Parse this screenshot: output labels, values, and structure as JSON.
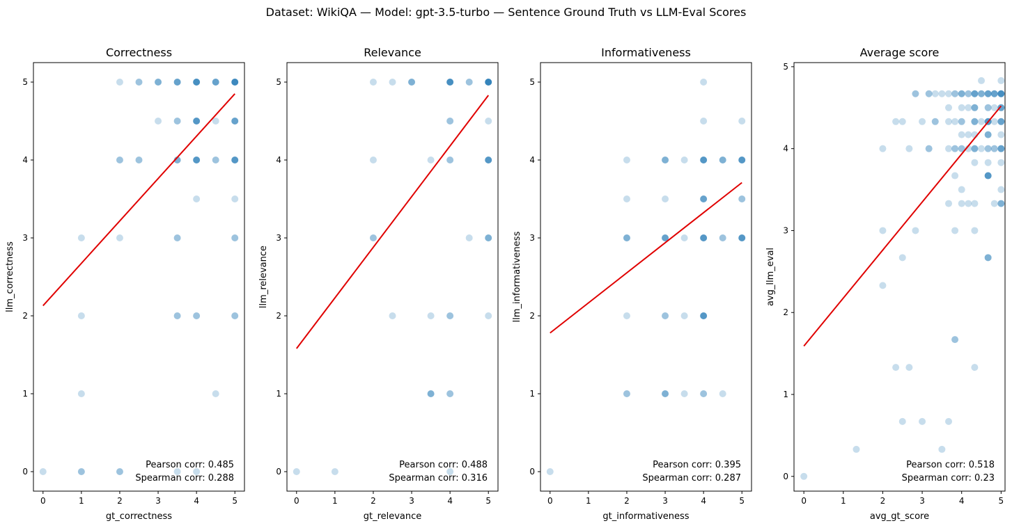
{
  "figure": {
    "suptitle": "Dataset: WikiQA — Model: gpt-3.5-turbo — Sentence Ground Truth vs LLM-Eval Scores"
  },
  "colors": {
    "points": "#1f77b4",
    "fit_line": "#e00000",
    "axes": "#000000",
    "background": "#ffffff"
  },
  "chart_data": [
    {
      "type": "scatter",
      "title": "Correctness",
      "xlabel": "gt_correctness",
      "ylabel": "llm_correctness",
      "xlim": [
        -0.25,
        5.25
      ],
      "ylim": [
        -0.25,
        5.25
      ],
      "xticks": [
        "0",
        "1",
        "2",
        "3",
        "4",
        "5"
      ],
      "yticks": [
        "0",
        "1",
        "2",
        "3",
        "4",
        "5"
      ],
      "grid": false,
      "annotations": [
        "Pearson corr: 0.485",
        "Spearman corr: 0.288"
      ],
      "fit_line": {
        "x": [
          0,
          5
        ],
        "y": [
          2.13,
          4.85
        ]
      },
      "points": [
        {
          "x": 2,
          "y": 5,
          "n": 1
        },
        {
          "x": 2.5,
          "y": 5,
          "n": 2
        },
        {
          "x": 3,
          "y": 5,
          "n": 3
        },
        {
          "x": 3.5,
          "y": 5,
          "n": 4
        },
        {
          "x": 4,
          "y": 5,
          "n": 6
        },
        {
          "x": 4.5,
          "y": 5,
          "n": 4
        },
        {
          "x": 5,
          "y": 5,
          "n": 7
        },
        {
          "x": 3,
          "y": 4.5,
          "n": 1
        },
        {
          "x": 3.5,
          "y": 4.5,
          "n": 2
        },
        {
          "x": 4,
          "y": 4.5,
          "n": 5
        },
        {
          "x": 4.5,
          "y": 4.5,
          "n": 1
        },
        {
          "x": 5,
          "y": 4.5,
          "n": 4
        },
        {
          "x": 2,
          "y": 4,
          "n": 2
        },
        {
          "x": 2.5,
          "y": 4,
          "n": 2
        },
        {
          "x": 3.5,
          "y": 4,
          "n": 3
        },
        {
          "x": 4,
          "y": 4,
          "n": 5
        },
        {
          "x": 4.5,
          "y": 4,
          "n": 2
        },
        {
          "x": 5,
          "y": 4,
          "n": 5
        },
        {
          "x": 4,
          "y": 3.5,
          "n": 1
        },
        {
          "x": 5,
          "y": 3.5,
          "n": 1
        },
        {
          "x": 1,
          "y": 3,
          "n": 1
        },
        {
          "x": 2,
          "y": 3,
          "n": 1
        },
        {
          "x": 3.5,
          "y": 3,
          "n": 2
        },
        {
          "x": 5,
          "y": 3,
          "n": 2
        },
        {
          "x": 1,
          "y": 2,
          "n": 1
        },
        {
          "x": 3.5,
          "y": 2,
          "n": 2
        },
        {
          "x": 4,
          "y": 2,
          "n": 2
        },
        {
          "x": 5,
          "y": 2,
          "n": 2
        },
        {
          "x": 1,
          "y": 1,
          "n": 1
        },
        {
          "x": 4.5,
          "y": 1,
          "n": 1
        },
        {
          "x": 0,
          "y": 0,
          "n": 1
        },
        {
          "x": 1,
          "y": 0,
          "n": 2
        },
        {
          "x": 2,
          "y": 0,
          "n": 2
        },
        {
          "x": 3.5,
          "y": 0,
          "n": 1
        },
        {
          "x": 4,
          "y": 0,
          "n": 1
        }
      ]
    },
    {
      "type": "scatter",
      "title": "Relevance",
      "xlabel": "gt_relevance",
      "ylabel": "llm_relevance",
      "xlim": [
        -0.25,
        5.25
      ],
      "ylim": [
        -0.25,
        5.25
      ],
      "xticks": [
        "0",
        "1",
        "2",
        "3",
        "4",
        "5"
      ],
      "yticks": [
        "0",
        "1",
        "2",
        "3",
        "4",
        "5"
      ],
      "grid": false,
      "annotations": [
        "Pearson corr: 0.488",
        "Spearman corr: 0.316"
      ],
      "fit_line": {
        "x": [
          0,
          5
        ],
        "y": [
          1.58,
          4.83
        ]
      },
      "points": [
        {
          "x": 2,
          "y": 5,
          "n": 1
        },
        {
          "x": 2.5,
          "y": 5,
          "n": 1
        },
        {
          "x": 3,
          "y": 5,
          "n": 3
        },
        {
          "x": 4,
          "y": 5,
          "n": 6
        },
        {
          "x": 4.5,
          "y": 5,
          "n": 2
        },
        {
          "x": 5,
          "y": 5,
          "n": 8
        },
        {
          "x": 4,
          "y": 4.5,
          "n": 2
        },
        {
          "x": 5,
          "y": 4.5,
          "n": 1
        },
        {
          "x": 2,
          "y": 4,
          "n": 1
        },
        {
          "x": 3.5,
          "y": 4,
          "n": 1
        },
        {
          "x": 4,
          "y": 4,
          "n": 2
        },
        {
          "x": 5,
          "y": 4,
          "n": 5
        },
        {
          "x": 2,
          "y": 3,
          "n": 2
        },
        {
          "x": 4.5,
          "y": 3,
          "n": 1
        },
        {
          "x": 5,
          "y": 3,
          "n": 3
        },
        {
          "x": 2.5,
          "y": 2,
          "n": 1
        },
        {
          "x": 3.5,
          "y": 2,
          "n": 1
        },
        {
          "x": 4,
          "y": 2,
          "n": 2
        },
        {
          "x": 5,
          "y": 2,
          "n": 1
        },
        {
          "x": 3.5,
          "y": 1,
          "n": 3
        },
        {
          "x": 4,
          "y": 1,
          "n": 2
        },
        {
          "x": 0,
          "y": 0,
          "n": 1
        },
        {
          "x": 1,
          "y": 0,
          "n": 1
        },
        {
          "x": 4,
          "y": 0,
          "n": 1
        }
      ]
    },
    {
      "type": "scatter",
      "title": "Informativeness",
      "xlabel": "gt_informativeness",
      "ylabel": "llm_informativeness",
      "xlim": [
        -0.25,
        5.25
      ],
      "ylim": [
        -0.25,
        5.25
      ],
      "xticks": [
        "0",
        "1",
        "2",
        "3",
        "4",
        "5"
      ],
      "yticks": [
        "0",
        "1",
        "2",
        "3",
        "4",
        "5"
      ],
      "grid": false,
      "annotations": [
        "Pearson corr: 0.395",
        "Spearman corr: 0.287"
      ],
      "fit_line": {
        "x": [
          0,
          5
        ],
        "y": [
          1.78,
          3.71
        ]
      },
      "points": [
        {
          "x": 4,
          "y": 5,
          "n": 1
        },
        {
          "x": 4,
          "y": 4.5,
          "n": 1
        },
        {
          "x": 5,
          "y": 4.5,
          "n": 1
        },
        {
          "x": 2,
          "y": 4,
          "n": 1
        },
        {
          "x": 3,
          "y": 4,
          "n": 3
        },
        {
          "x": 3.5,
          "y": 4,
          "n": 1
        },
        {
          "x": 4,
          "y": 4,
          "n": 5
        },
        {
          "x": 4.5,
          "y": 4,
          "n": 3
        },
        {
          "x": 5,
          "y": 4,
          "n": 5
        },
        {
          "x": 2,
          "y": 3.5,
          "n": 1
        },
        {
          "x": 3,
          "y": 3.5,
          "n": 1
        },
        {
          "x": 4,
          "y": 3.5,
          "n": 4
        },
        {
          "x": 5,
          "y": 3.5,
          "n": 2
        },
        {
          "x": 2,
          "y": 3,
          "n": 3
        },
        {
          "x": 3,
          "y": 3,
          "n": 4
        },
        {
          "x": 3.5,
          "y": 3,
          "n": 1
        },
        {
          "x": 4,
          "y": 3,
          "n": 5
        },
        {
          "x": 4.5,
          "y": 3,
          "n": 2
        },
        {
          "x": 5,
          "y": 3,
          "n": 5
        },
        {
          "x": 2,
          "y": 2,
          "n": 1
        },
        {
          "x": 3,
          "y": 2,
          "n": 2
        },
        {
          "x": 3.5,
          "y": 2,
          "n": 1
        },
        {
          "x": 4,
          "y": 2,
          "n": 5
        },
        {
          "x": 2,
          "y": 1,
          "n": 2
        },
        {
          "x": 3,
          "y": 1,
          "n": 3
        },
        {
          "x": 3.5,
          "y": 1,
          "n": 1
        },
        {
          "x": 4,
          "y": 1,
          "n": 2
        },
        {
          "x": 4.5,
          "y": 1,
          "n": 1
        },
        {
          "x": 0,
          "y": 0,
          "n": 1
        }
      ]
    },
    {
      "type": "scatter",
      "title": "Average score",
      "xlabel": "avg_gt_score",
      "ylabel": "avg_llm_eval",
      "xlim": [
        -0.25,
        5.1
      ],
      "ylim": [
        -0.18,
        5.05
      ],
      "xticks": [
        "0",
        "1",
        "2",
        "3",
        "4",
        "5"
      ],
      "yticks": [
        "0",
        "1",
        "2",
        "3",
        "4",
        "5"
      ],
      "grid": false,
      "annotations": [
        "Pearson corr: 0.518",
        "Spearman corr: 0.23"
      ],
      "fit_line": {
        "x": [
          0,
          5
        ],
        "y": [
          1.59,
          4.52
        ]
      },
      "points": [
        {
          "x": 4.5,
          "y": 4.83,
          "n": 1
        },
        {
          "x": 5,
          "y": 4.83,
          "n": 1
        },
        {
          "x": 2.83,
          "y": 4.67,
          "n": 2
        },
        {
          "x": 3.17,
          "y": 4.67,
          "n": 2
        },
        {
          "x": 3.33,
          "y": 4.67,
          "n": 1
        },
        {
          "x": 3.5,
          "y": 4.67,
          "n": 1
        },
        {
          "x": 3.67,
          "y": 4.67,
          "n": 1
        },
        {
          "x": 3.83,
          "y": 4.67,
          "n": 2
        },
        {
          "x": 4,
          "y": 4.67,
          "n": 3
        },
        {
          "x": 4.17,
          "y": 4.67,
          "n": 2
        },
        {
          "x": 4.33,
          "y": 4.67,
          "n": 4
        },
        {
          "x": 4.5,
          "y": 4.67,
          "n": 3
        },
        {
          "x": 4.67,
          "y": 4.67,
          "n": 4
        },
        {
          "x": 4.83,
          "y": 4.67,
          "n": 4
        },
        {
          "x": 5,
          "y": 4.67,
          "n": 6
        },
        {
          "x": 3.67,
          "y": 4.5,
          "n": 1
        },
        {
          "x": 4,
          "y": 4.5,
          "n": 1
        },
        {
          "x": 4.17,
          "y": 4.5,
          "n": 1
        },
        {
          "x": 4.33,
          "y": 4.5,
          "n": 3
        },
        {
          "x": 4.67,
          "y": 4.5,
          "n": 2
        },
        {
          "x": 4.83,
          "y": 4.5,
          "n": 1
        },
        {
          "x": 5,
          "y": 4.5,
          "n": 4
        },
        {
          "x": 2.33,
          "y": 4.33,
          "n": 1
        },
        {
          "x": 2.5,
          "y": 4.33,
          "n": 1
        },
        {
          "x": 3,
          "y": 4.33,
          "n": 1
        },
        {
          "x": 3.33,
          "y": 4.33,
          "n": 2
        },
        {
          "x": 3.67,
          "y": 4.33,
          "n": 1
        },
        {
          "x": 3.83,
          "y": 4.33,
          "n": 1
        },
        {
          "x": 4,
          "y": 4.33,
          "n": 2
        },
        {
          "x": 4.33,
          "y": 4.33,
          "n": 3
        },
        {
          "x": 4.5,
          "y": 4.33,
          "n": 1
        },
        {
          "x": 4.67,
          "y": 4.33,
          "n": 5
        },
        {
          "x": 4.83,
          "y": 4.33,
          "n": 1
        },
        {
          "x": 5,
          "y": 4.33,
          "n": 4
        },
        {
          "x": 4,
          "y": 4.17,
          "n": 1
        },
        {
          "x": 4.17,
          "y": 4.17,
          "n": 1
        },
        {
          "x": 4.33,
          "y": 4.17,
          "n": 1
        },
        {
          "x": 4.67,
          "y": 4.17,
          "n": 3
        },
        {
          "x": 5,
          "y": 4.17,
          "n": 1
        },
        {
          "x": 2,
          "y": 4,
          "n": 1
        },
        {
          "x": 2.67,
          "y": 4,
          "n": 1
        },
        {
          "x": 3.17,
          "y": 4,
          "n": 2
        },
        {
          "x": 3.67,
          "y": 4,
          "n": 1
        },
        {
          "x": 3.83,
          "y": 4,
          "n": 2
        },
        {
          "x": 4,
          "y": 4,
          "n": 2
        },
        {
          "x": 4.17,
          "y": 4,
          "n": 1
        },
        {
          "x": 4.33,
          "y": 4,
          "n": 3
        },
        {
          "x": 4.5,
          "y": 4,
          "n": 1
        },
        {
          "x": 4.67,
          "y": 4,
          "n": 2
        },
        {
          "x": 4.83,
          "y": 4,
          "n": 2
        },
        {
          "x": 5,
          "y": 4,
          "n": 4
        },
        {
          "x": 4.33,
          "y": 3.83,
          "n": 1
        },
        {
          "x": 4.67,
          "y": 3.83,
          "n": 1
        },
        {
          "x": 5,
          "y": 3.83,
          "n": 1
        },
        {
          "x": 3.83,
          "y": 3.67,
          "n": 1
        },
        {
          "x": 4.67,
          "y": 3.67,
          "n": 5
        },
        {
          "x": 4,
          "y": 3.5,
          "n": 1
        },
        {
          "x": 5,
          "y": 3.5,
          "n": 1
        },
        {
          "x": 3.67,
          "y": 3.33,
          "n": 1
        },
        {
          "x": 4,
          "y": 3.33,
          "n": 1
        },
        {
          "x": 4.17,
          "y": 3.33,
          "n": 1
        },
        {
          "x": 4.33,
          "y": 3.33,
          "n": 1
        },
        {
          "x": 4.83,
          "y": 3.33,
          "n": 1
        },
        {
          "x": 5,
          "y": 3.33,
          "n": 3
        },
        {
          "x": 2,
          "y": 3,
          "n": 1
        },
        {
          "x": 2.83,
          "y": 3,
          "n": 1
        },
        {
          "x": 3.83,
          "y": 3,
          "n": 1
        },
        {
          "x": 4.33,
          "y": 3,
          "n": 1
        },
        {
          "x": 2.5,
          "y": 2.67,
          "n": 1
        },
        {
          "x": 4.67,
          "y": 2.67,
          "n": 3
        },
        {
          "x": 2,
          "y": 2.33,
          "n": 1
        },
        {
          "x": 3.83,
          "y": 1.67,
          "n": 2
        },
        {
          "x": 2.33,
          "y": 1.33,
          "n": 1
        },
        {
          "x": 2.67,
          "y": 1.33,
          "n": 1
        },
        {
          "x": 4.33,
          "y": 1.33,
          "n": 1
        },
        {
          "x": 2.5,
          "y": 0.67,
          "n": 1
        },
        {
          "x": 3,
          "y": 0.67,
          "n": 1
        },
        {
          "x": 3.67,
          "y": 0.67,
          "n": 1
        },
        {
          "x": 1.33,
          "y": 0.33,
          "n": 1
        },
        {
          "x": 3.5,
          "y": 0.33,
          "n": 1
        },
        {
          "x": 0,
          "y": 0,
          "n": 1
        }
      ]
    }
  ]
}
